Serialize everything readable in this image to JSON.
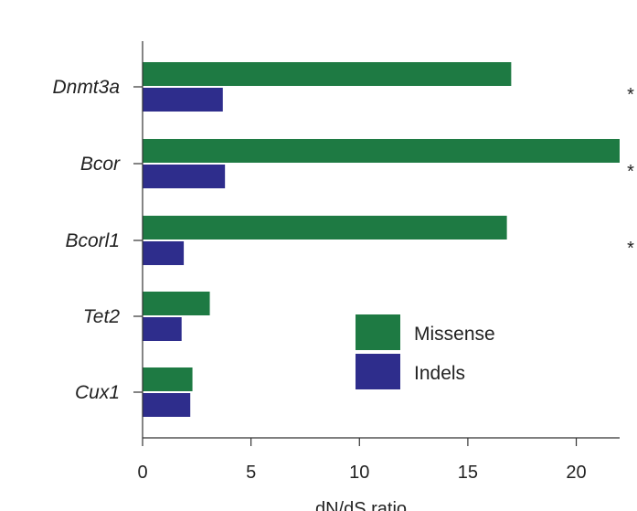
{
  "chart_data": {
    "type": "bar",
    "orientation": "horizontal",
    "categories": [
      "Dnmt3a",
      "Bcor",
      "Bcorl1",
      "Tet2",
      "Cux1"
    ],
    "series": [
      {
        "name": "Missense",
        "values": [
          17.0,
          22.0,
          16.8,
          3.1,
          2.3
        ],
        "color": "#1e7a43"
      },
      {
        "name": "Indels",
        "values": [
          3.7,
          3.8,
          1.9,
          1.8,
          2.2
        ],
        "color": "#2e2d8c"
      }
    ],
    "significance": [
      "*",
      "*",
      "*",
      "",
      ""
    ],
    "xlabel": "dN/dS ratio",
    "ylabel": "",
    "xlim": [
      0,
      22
    ],
    "xticks": [
      0,
      5,
      10,
      15,
      20
    ],
    "legend_position": "lower-right",
    "grid": false
  }
}
